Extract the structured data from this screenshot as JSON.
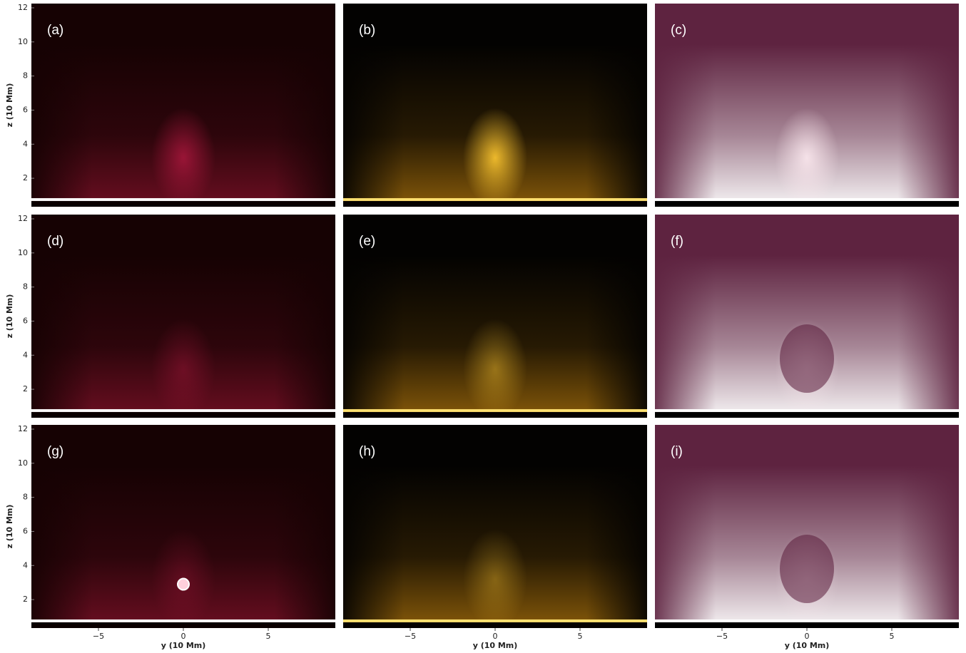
{
  "chart_data": [
    {
      "type": "image",
      "label": "(a)",
      "colormap": "red",
      "ylabel": "z (10 Mm)",
      "ylim": [
        0.33,
        12.25
      ],
      "yticks": [
        2,
        4,
        6,
        8,
        10,
        12
      ]
    },
    {
      "type": "image",
      "label": "(b)",
      "colormap": "yellow"
    },
    {
      "type": "image",
      "label": "(c)",
      "colormap": "pink"
    },
    {
      "type": "image",
      "label": "(d)",
      "colormap": "red",
      "ylabel": "z (10 Mm)",
      "ylim": [
        0.33,
        12.25
      ],
      "yticks": [
        2,
        4,
        6,
        8,
        10,
        12
      ]
    },
    {
      "type": "image",
      "label": "(e)",
      "colormap": "yellow"
    },
    {
      "type": "image",
      "label": "(f)",
      "colormap": "pink"
    },
    {
      "type": "image",
      "label": "(g)",
      "colormap": "red",
      "ylabel": "z (10 Mm)",
      "ylim": [
        0.33,
        12.25
      ],
      "yticks": [
        2,
        4,
        6,
        8,
        10,
        12
      ],
      "xlabel": "y (10 Mm)",
      "xlim": [
        -8.95,
        8.95
      ],
      "xticks": [
        {
          "value": -5,
          "label": "−5"
        },
        0,
        5
      ]
    },
    {
      "type": "image",
      "label": "(h)",
      "colormap": "yellow",
      "xlabel": "y (10 Mm)",
      "xlim": [
        -8.95,
        8.95
      ],
      "xticks": [
        {
          "value": -5,
          "label": "−5"
        },
        0,
        5
      ]
    },
    {
      "type": "image",
      "label": "(i)",
      "colormap": "pink",
      "xlabel": "y (10 Mm)",
      "xlim": [
        -8.95,
        8.95
      ],
      "xticks": [
        {
          "value": -5,
          "label": "−5"
        },
        0,
        5
      ]
    }
  ]
}
